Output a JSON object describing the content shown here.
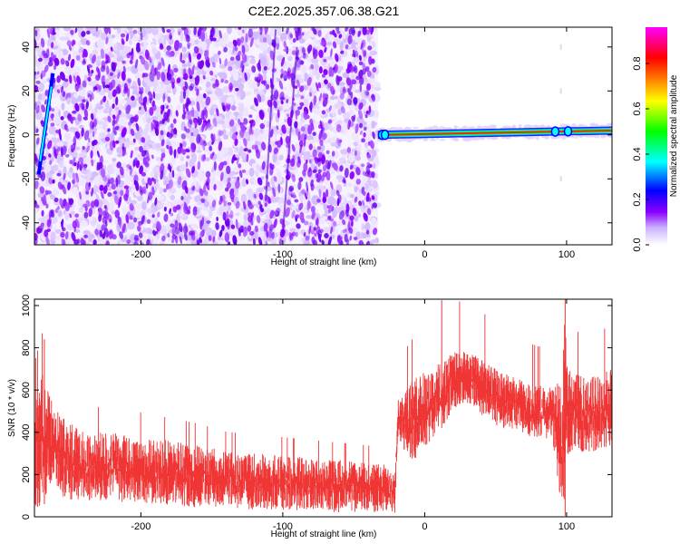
{
  "title": "C2E2.2025.357.06.38.G21",
  "chart_data": [
    {
      "type": "heatmap",
      "title": "C2E2.2025.357.06.38.G21",
      "xlabel": "Height of straight line (km)",
      "ylabel": "Frequency (Hz)",
      "xlim": [
        -275,
        132
      ],
      "ylim": [
        -50,
        49
      ],
      "xticks": [
        -200,
        -100,
        0,
        100
      ],
      "yticks": [
        -40,
        -20,
        0,
        20,
        40
      ],
      "colorbar": {
        "label": "Normalized spectral amplitude",
        "range": [
          0,
          0.96
        ],
        "ticks": [
          0.0,
          0.2,
          0.4,
          0.6,
          0.8
        ],
        "colormap": [
          "#ffffff",
          "#8b00ff",
          "#0000ff",
          "#00ffff",
          "#00ff00",
          "#ffff00",
          "#ff7f00",
          "#ff0000",
          "#ff00ff"
        ]
      },
      "features": {
        "noise_region_x": [
          -275,
          -33
        ],
        "signal_line": {
          "x": [
            -33,
            132
          ],
          "frequency": [
            0,
            2
          ],
          "amplitude": 0.9
        },
        "early_streak": {
          "x": [
            -272,
            -262
          ],
          "frequency": [
            -18,
            28
          ]
        }
      }
    },
    {
      "type": "line",
      "xlabel": "Height of straight line (km)",
      "ylabel": "SNR (10 * v/v)",
      "xlim": [
        -275,
        132
      ],
      "ylim": [
        0,
        1030
      ],
      "xticks": [
        -200,
        -100,
        0,
        100
      ],
      "yticks": [
        0,
        200,
        400,
        600,
        800,
        1000
      ],
      "color": "#f03535",
      "series": [
        {
          "x": [
            -275,
            -268,
            -262,
            -255,
            -240,
            -220,
            -200,
            -180,
            -160,
            -140,
            -120,
            -100,
            -80,
            -60,
            -40,
            -21,
            -19,
            -10,
            0,
            10,
            20,
            30,
            40,
            50,
            60,
            70,
            80,
            90,
            97,
            99,
            101,
            105,
            115,
            125,
            132
          ],
          "lower": [
            20,
            60,
            180,
            80,
            75,
            70,
            60,
            55,
            45,
            40,
            35,
            30,
            25,
            20,
            20,
            15,
            380,
            250,
            330,
            400,
            500,
            540,
            480,
            430,
            410,
            390,
            370,
            360,
            20,
            5,
            280,
            320,
            300,
            320,
            330
          ],
          "upper": [
            560,
            700,
            520,
            470,
            400,
            400,
            380,
            360,
            340,
            310,
            300,
            290,
            280,
            270,
            260,
            240,
            560,
            640,
            690,
            730,
            780,
            790,
            750,
            700,
            670,
            640,
            620,
            620,
            650,
            1000,
            700,
            680,
            660,
            680,
            700
          ]
        }
      ]
    }
  ]
}
